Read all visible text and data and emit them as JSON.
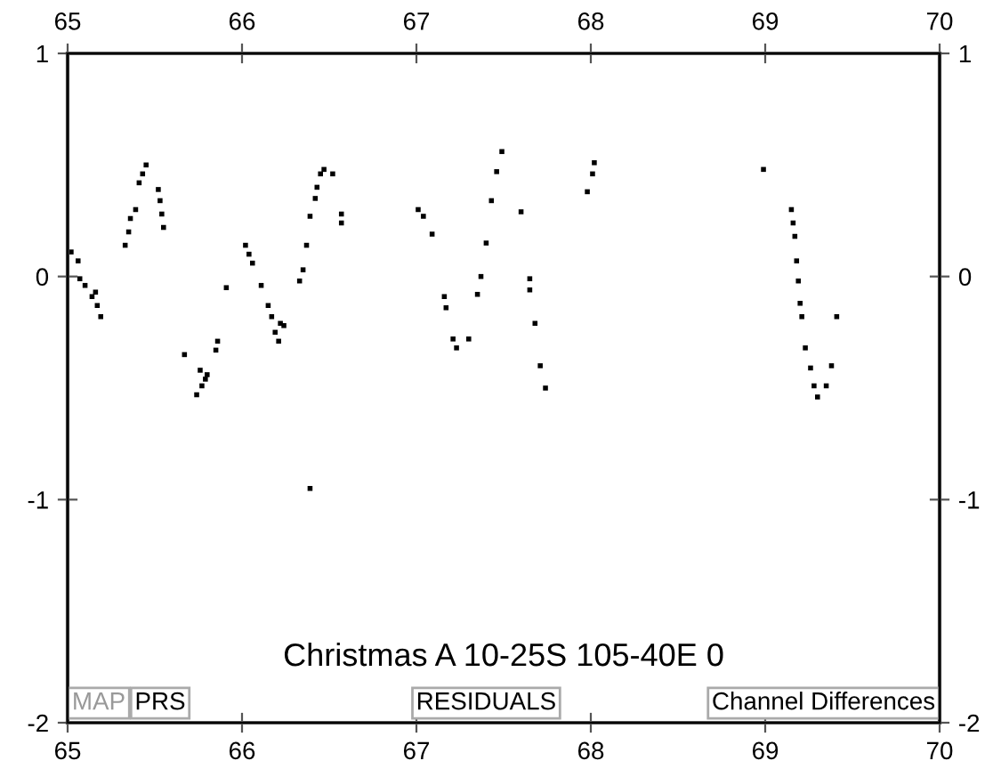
{
  "chart_data": {
    "type": "scatter",
    "title": "Christmas A 10-25S 105-40E 0",
    "annotations": [
      "MAP",
      "PRS",
      "RESIDUALS",
      "Channel Differences"
    ],
    "x": [
      65.02,
      65.06,
      65.07,
      65.1,
      65.14,
      65.16,
      65.17,
      65.19,
      65.33,
      65.35,
      65.36,
      65.39,
      65.41,
      65.43,
      65.45,
      65.52,
      65.53,
      65.54,
      65.55,
      65.67,
      65.76,
      65.74,
      65.77,
      65.79,
      65.8,
      65.85,
      65.86,
      65.91,
      66.02,
      66.04,
      66.06,
      66.11,
      66.15,
      66.17,
      66.19,
      66.21,
      66.22,
      66.24,
      66.33,
      66.35,
      66.37,
      66.39,
      66.42,
      66.43,
      66.45,
      66.47,
      66.52,
      66.57,
      66.57,
      66.39,
      67.01,
      67.04,
      67.09,
      67.16,
      67.17,
      67.21,
      67.23,
      67.3,
      67.35,
      67.37,
      67.4,
      67.43,
      67.46,
      67.49,
      67.6,
      67.65,
      67.65,
      67.68,
      67.71,
      67.74,
      67.98,
      68.01,
      68.02,
      68.99,
      69.15,
      69.16,
      69.17,
      69.18,
      69.19,
      69.2,
      69.21,
      69.23,
      69.26,
      69.28,
      69.3,
      69.35,
      69.38,
      69.41
    ],
    "series": [
      {
        "color": "#000000",
        "values": [
          0.11,
          0.07,
          -0.01,
          -0.04,
          -0.09,
          -0.07,
          -0.13,
          -0.18,
          0.14,
          0.2,
          0.26,
          0.3,
          0.42,
          0.46,
          0.5,
          0.39,
          0.34,
          0.28,
          0.22,
          -0.35,
          -0.42,
          -0.53,
          -0.49,
          -0.46,
          -0.44,
          -0.33,
          -0.29,
          -0.05,
          0.14,
          0.1,
          0.06,
          -0.04,
          -0.13,
          -0.18,
          -0.25,
          -0.29,
          -0.21,
          -0.22,
          -0.02,
          0.03,
          0.14,
          0.27,
          0.35,
          0.4,
          0.46,
          0.48,
          0.46,
          0.28,
          0.24,
          -0.95,
          0.3,
          0.27,
          0.19,
          -0.09,
          -0.14,
          -0.28,
          -0.32,
          -0.28,
          -0.08,
          0.0,
          0.15,
          0.34,
          0.47,
          0.56,
          0.29,
          -0.01,
          -0.06,
          -0.21,
          -0.4,
          -0.5,
          0.38,
          0.46,
          0.51,
          0.48,
          0.3,
          0.24,
          0.18,
          0.07,
          -0.02,
          -0.12,
          -0.18,
          -0.32,
          -0.41,
          -0.49,
          -0.54,
          -0.49,
          -0.4,
          -0.18
        ]
      }
    ],
    "marker": "square",
    "xlim": [
      65,
      70
    ],
    "xticks": [
      65,
      66,
      67,
      68,
      69,
      70
    ],
    "x2lim": [
      65,
      70
    ],
    "x2ticks": [
      65,
      66,
      67,
      68,
      69,
      70
    ],
    "ylim": [
      -2,
      1
    ],
    "yticks": [
      1,
      0,
      -1,
      -2
    ],
    "y2lim": [
      -2,
      1
    ],
    "y2ticks": [
      1,
      0,
      -1,
      -2
    ],
    "grid": false,
    "legend": false
  }
}
